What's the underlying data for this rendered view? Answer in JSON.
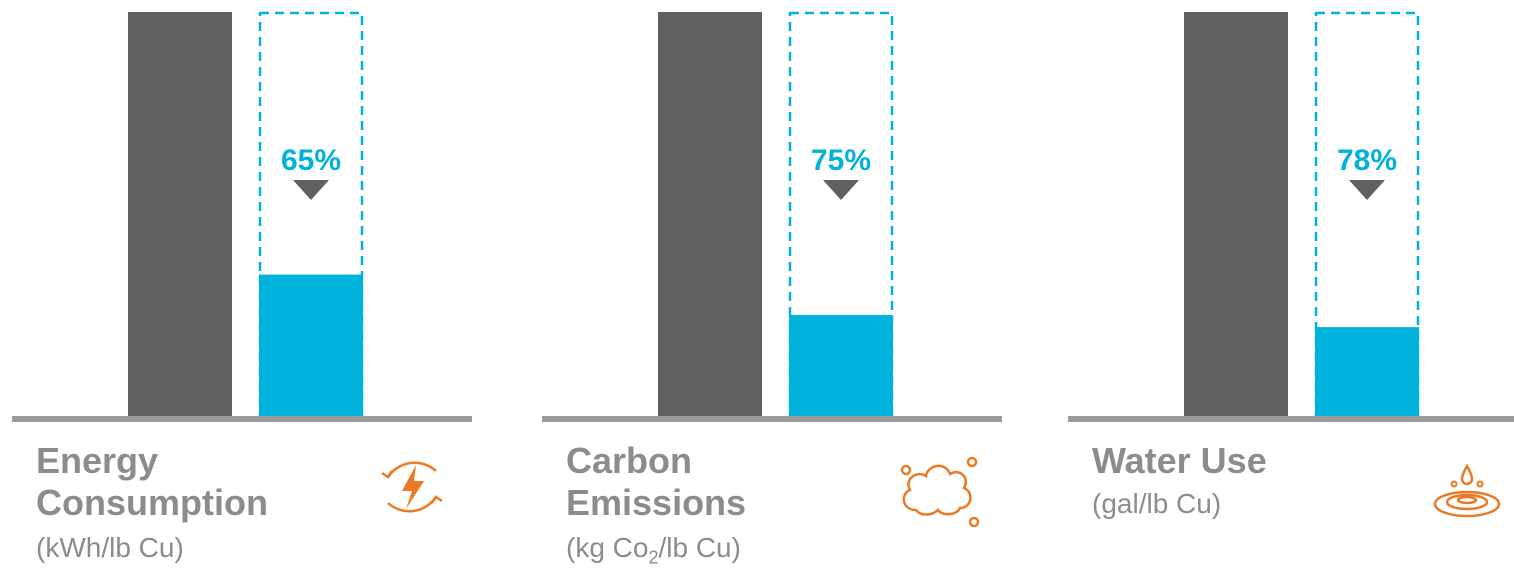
{
  "colors": {
    "baseline_bar": "#5f6062",
    "reduced_bar": "#00b2dc",
    "axis": "#9a9a9a",
    "label_text": "#8c8c8c",
    "arrow": "#5f6062",
    "icon": "#ea7a23"
  },
  "chart_data": [
    {
      "type": "bar",
      "title": "Energy Consumption",
      "title_lines": [
        "Energy",
        "Consumption"
      ],
      "unit": "(kWh/lb Cu)",
      "values": [
        100,
        35
      ],
      "reduction_label": "65%",
      "icon": "lightning-cycle-icon"
    },
    {
      "type": "bar",
      "title": "Carbon Emissions",
      "title_lines": [
        "Carbon",
        "Emissions"
      ],
      "unit_prefix": "(kg Co",
      "unit_sub": "2",
      "unit_suffix": "/lb Cu)",
      "values": [
        100,
        25
      ],
      "reduction_label": "75%",
      "icon": "cloud-icon"
    },
    {
      "type": "bar",
      "title": "Water Use",
      "title_lines": [
        "Water Use"
      ],
      "unit": "(gal/lb Cu)",
      "values": [
        100,
        22
      ],
      "reduction_label": "78%",
      "icon": "water-drop-ripple-icon"
    }
  ]
}
